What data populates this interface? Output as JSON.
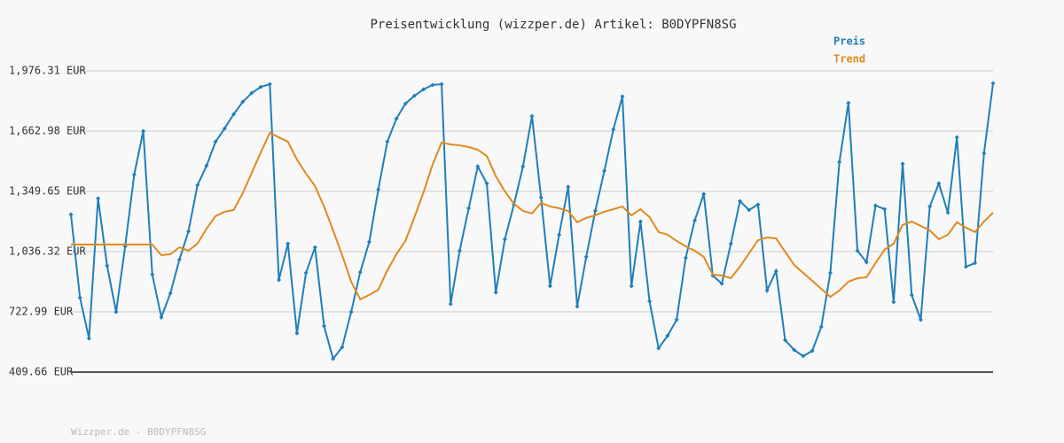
{
  "chart_data": {
    "type": "line",
    "title": "Preisentwicklung (wizzper.de) Artikel: B0DYPFN8SG",
    "footer": "Wizzper.de - B0DYPFN8SG",
    "legend": "top-right",
    "grid": true,
    "ylim": [
      409.66,
      1976.31
    ],
    "yticks": [
      {
        "value": 409.66,
        "label": "409.66 EUR"
      },
      {
        "value": 722.99,
        "label": "722.99 EUR"
      },
      {
        "value": 1036.32,
        "label": "1,036.32 EUR"
      },
      {
        "value": 1349.65,
        "label": "1,349.65 EUR"
      },
      {
        "value": 1662.98,
        "label": "1,662.98 EUR"
      },
      {
        "value": 1976.31,
        "label": "1,976.31 EUR"
      }
    ],
    "series": [
      {
        "name": "Preis",
        "color": "#1f7fba",
        "markers": true,
        "values": [
          1230,
          797,
          585,
          1313,
          963,
          723,
          1064,
          1437,
          1663,
          917,
          695,
          820,
          995,
          1142,
          1382,
          1483,
          1608,
          1677,
          1751,
          1815,
          1861,
          1893,
          1907,
          889,
          1078,
          612,
          926,
          1059,
          649,
          479,
          539,
          723,
          930,
          1087,
          1359,
          1608,
          1728,
          1806,
          1847,
          1880,
          1903,
          1907,
          764,
          1041,
          1262,
          1479,
          1391,
          824,
          1101,
          1281,
          1479,
          1741,
          1318,
          857,
          1124,
          1373,
          751,
          1009,
          1248,
          1456,
          1672,
          1843,
          857,
          1193,
          778,
          534,
          599,
          682,
          1004,
          1198,
          1336,
          912,
          870,
          1078,
          1299,
          1253,
          1281,
          834,
          935,
          576,
          525,
          493,
          520,
          645,
          926,
          1502,
          1810,
          1041,
          981,
          1276,
          1257,
          774,
          1493,
          811,
          682,
          1271,
          1391,
          1239,
          1631,
          958,
          977,
          1548,
          1912
        ]
      },
      {
        "name": "Trend",
        "color": "#e08a1e",
        "markers": false,
        "values": [
          1073,
          1073,
          1073,
          1073,
          1073,
          1073,
          1073,
          1073,
          1073,
          1073,
          1018,
          1023,
          1059,
          1041,
          1078,
          1156,
          1221,
          1244,
          1253,
          1340,
          1446,
          1552,
          1654,
          1631,
          1608,
          1515,
          1442,
          1377,
          1271,
          1147,
          1018,
          880,
          788,
          811,
          838,
          939,
          1023,
          1092,
          1216,
          1345,
          1488,
          1603,
          1594,
          1589,
          1580,
          1566,
          1534,
          1428,
          1350,
          1285,
          1248,
          1235,
          1290,
          1271,
          1262,
          1248,
          1189,
          1212,
          1225,
          1244,
          1257,
          1271,
          1225,
          1257,
          1216,
          1138,
          1124,
          1092,
          1064,
          1041,
          1009,
          917,
          912,
          898,
          958,
          1027,
          1096,
          1110,
          1105,
          1036,
          967,
          926,
          884,
          843,
          801,
          834,
          880,
          898,
          903,
          977,
          1046,
          1078,
          1175,
          1193,
          1170,
          1147,
          1101,
          1124,
          1189,
          1161,
          1138,
          1193,
          1239
        ]
      }
    ]
  }
}
